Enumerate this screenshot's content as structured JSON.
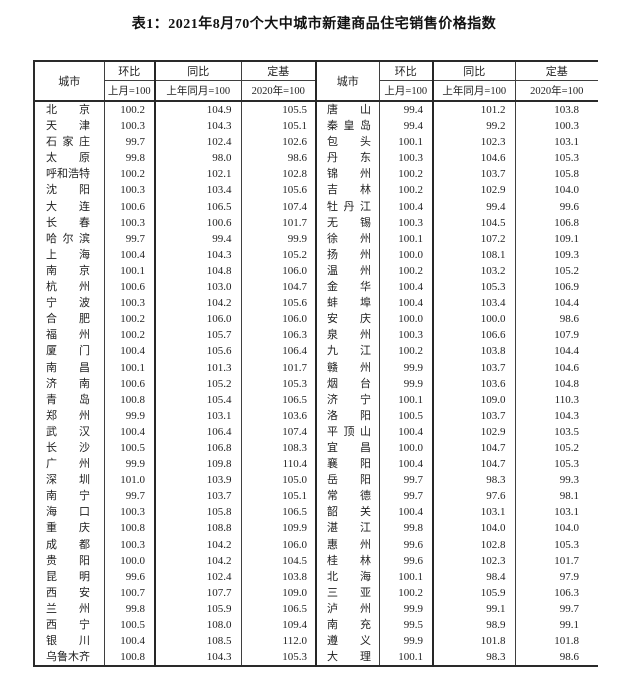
{
  "page": {
    "background": "#ffffff",
    "text_color": "#1f1f1f",
    "border_color": "#2a2a2a"
  },
  "title": "表1：2021年8月70个大中城市新建商品住宅销售价格指数",
  "table": {
    "header": {
      "city": "城市",
      "groups": [
        {
          "label": "环比",
          "sub": "上月=100"
        },
        {
          "label": "同比",
          "sub": "上年同月=100"
        },
        {
          "label": "定基",
          "sub": "2020年=100"
        }
      ]
    },
    "row_format": [
      "city_left",
      "mom",
      "yoy",
      "fixed_base",
      "city_right",
      "mom",
      "yoy",
      "fixed_base"
    ],
    "rows": [
      [
        "北京",
        "100.2",
        "104.9",
        "105.5",
        "唐山",
        "99.4",
        "101.2",
        "103.8"
      ],
      [
        "天津",
        "100.3",
        "104.3",
        "105.1",
        "秦皇岛",
        "99.4",
        "99.2",
        "100.3"
      ],
      [
        "石家庄",
        "99.7",
        "102.4",
        "102.6",
        "包头",
        "100.1",
        "102.3",
        "103.1"
      ],
      [
        "太原",
        "99.8",
        "98.0",
        "98.6",
        "丹东",
        "100.3",
        "104.6",
        "105.3"
      ],
      [
        "呼和浩特",
        "100.2",
        "102.1",
        "102.8",
        "锦州",
        "100.2",
        "103.7",
        "105.8"
      ],
      [
        "沈阳",
        "100.3",
        "103.4",
        "105.6",
        "吉林",
        "100.2",
        "102.9",
        "104.0"
      ],
      [
        "大连",
        "100.6",
        "106.5",
        "107.4",
        "牡丹江",
        "100.4",
        "99.4",
        "99.6"
      ],
      [
        "长春",
        "100.3",
        "100.6",
        "101.7",
        "无锡",
        "100.3",
        "104.5",
        "106.8"
      ],
      [
        "哈尔滨",
        "99.7",
        "99.4",
        "99.9",
        "徐州",
        "100.1",
        "107.2",
        "109.1"
      ],
      [
        "上海",
        "100.4",
        "104.3",
        "105.2",
        "扬州",
        "100.0",
        "108.1",
        "109.3"
      ],
      [
        "南京",
        "100.1",
        "104.8",
        "106.0",
        "温州",
        "100.2",
        "103.2",
        "105.2"
      ],
      [
        "杭州",
        "100.6",
        "103.0",
        "104.7",
        "金华",
        "100.4",
        "105.3",
        "106.9"
      ],
      [
        "宁波",
        "100.3",
        "104.2",
        "105.6",
        "蚌埠",
        "100.4",
        "103.4",
        "104.4"
      ],
      [
        "合肥",
        "100.2",
        "106.0",
        "106.0",
        "安庆",
        "100.0",
        "100.0",
        "98.6"
      ],
      [
        "福州",
        "100.2",
        "105.7",
        "106.3",
        "泉州",
        "100.3",
        "106.6",
        "107.9"
      ],
      [
        "厦门",
        "100.4",
        "105.6",
        "106.4",
        "九江",
        "100.2",
        "103.8",
        "104.4"
      ],
      [
        "南昌",
        "100.1",
        "101.3",
        "101.7",
        "赣州",
        "99.9",
        "103.7",
        "104.6"
      ],
      [
        "济南",
        "100.6",
        "105.2",
        "105.3",
        "烟台",
        "99.9",
        "103.6",
        "104.8"
      ],
      [
        "青岛",
        "100.8",
        "105.4",
        "106.5",
        "济宁",
        "100.1",
        "109.0",
        "110.3"
      ],
      [
        "郑州",
        "99.9",
        "103.1",
        "103.6",
        "洛阳",
        "100.5",
        "103.7",
        "104.3"
      ],
      [
        "武汉",
        "100.4",
        "106.4",
        "107.4",
        "平顶山",
        "100.4",
        "102.9",
        "103.5"
      ],
      [
        "长沙",
        "100.5",
        "106.8",
        "108.3",
        "宜昌",
        "100.0",
        "104.7",
        "105.2"
      ],
      [
        "广州",
        "99.9",
        "109.8",
        "110.4",
        "襄阳",
        "100.4",
        "104.7",
        "105.3"
      ],
      [
        "深圳",
        "101.0",
        "103.9",
        "105.0",
        "岳阳",
        "99.7",
        "98.3",
        "99.3"
      ],
      [
        "南宁",
        "99.7",
        "103.7",
        "105.1",
        "常德",
        "99.7",
        "97.6",
        "98.1"
      ],
      [
        "海口",
        "100.3",
        "105.8",
        "106.5",
        "韶关",
        "100.4",
        "103.1",
        "103.1"
      ],
      [
        "重庆",
        "100.8",
        "108.8",
        "109.9",
        "湛江",
        "99.8",
        "104.0",
        "104.0"
      ],
      [
        "成都",
        "100.3",
        "104.2",
        "106.0",
        "惠州",
        "99.6",
        "102.8",
        "105.3"
      ],
      [
        "贵阳",
        "100.0",
        "104.2",
        "104.5",
        "桂林",
        "99.6",
        "102.3",
        "101.7"
      ],
      [
        "昆明",
        "99.6",
        "102.4",
        "103.8",
        "北海",
        "100.1",
        "98.4",
        "97.9"
      ],
      [
        "西安",
        "100.7",
        "107.7",
        "109.0",
        "三亚",
        "100.2",
        "105.9",
        "106.3"
      ],
      [
        "兰州",
        "99.8",
        "105.9",
        "106.5",
        "泸州",
        "99.9",
        "99.1",
        "99.7"
      ],
      [
        "西宁",
        "100.5",
        "108.0",
        "109.4",
        "南充",
        "99.5",
        "98.9",
        "99.1"
      ],
      [
        "银川",
        "100.4",
        "108.5",
        "112.0",
        "遵义",
        "99.9",
        "101.8",
        "101.8"
      ],
      [
        "乌鲁木齐",
        "100.8",
        "104.3",
        "105.3",
        "大理",
        "100.1",
        "98.3",
        "98.6"
      ]
    ]
  }
}
